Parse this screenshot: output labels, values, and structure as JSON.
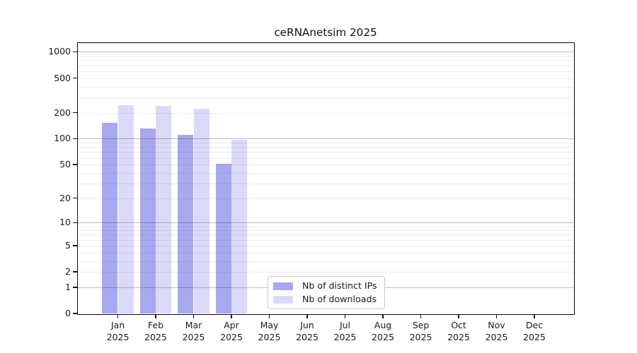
{
  "figure": {
    "title": "ceRNAnetsim 2025"
  },
  "chart_data": {
    "type": "bar",
    "title": "ceRNAnetsim 2025",
    "months": [
      "Jan",
      "Feb",
      "Mar",
      "Apr",
      "May",
      "Jun",
      "Jul",
      "Aug",
      "Sep",
      "Oct",
      "Nov",
      "Dec"
    ],
    "year": "2025",
    "series": [
      {
        "name": "Nb of distinct IPs",
        "color": "#a8a8f0",
        "values": [
          152,
          131,
          111,
          51,
          0,
          0,
          0,
          0,
          0,
          0,
          0,
          0
        ]
      },
      {
        "name": "Nb of downloads",
        "color": "#dadaf8",
        "values": [
          245,
          241,
          222,
          98,
          0,
          0,
          0,
          0,
          0,
          0,
          0,
          0
        ]
      }
    ],
    "y_ticks": [
      0,
      1,
      2,
      5,
      10,
      20,
      50,
      100,
      200,
      500,
      1000
    ],
    "y_scale": "log1p",
    "ylim": [
      0,
      1250
    ],
    "grid": true,
    "legend_position": "lower center",
    "colors": {
      "major_grid": "#b3b3b3",
      "minor_grid": "#ebebeb",
      "axis": "#0a0a0a",
      "text": "#1a1a1a",
      "background": "#ffffff"
    }
  }
}
